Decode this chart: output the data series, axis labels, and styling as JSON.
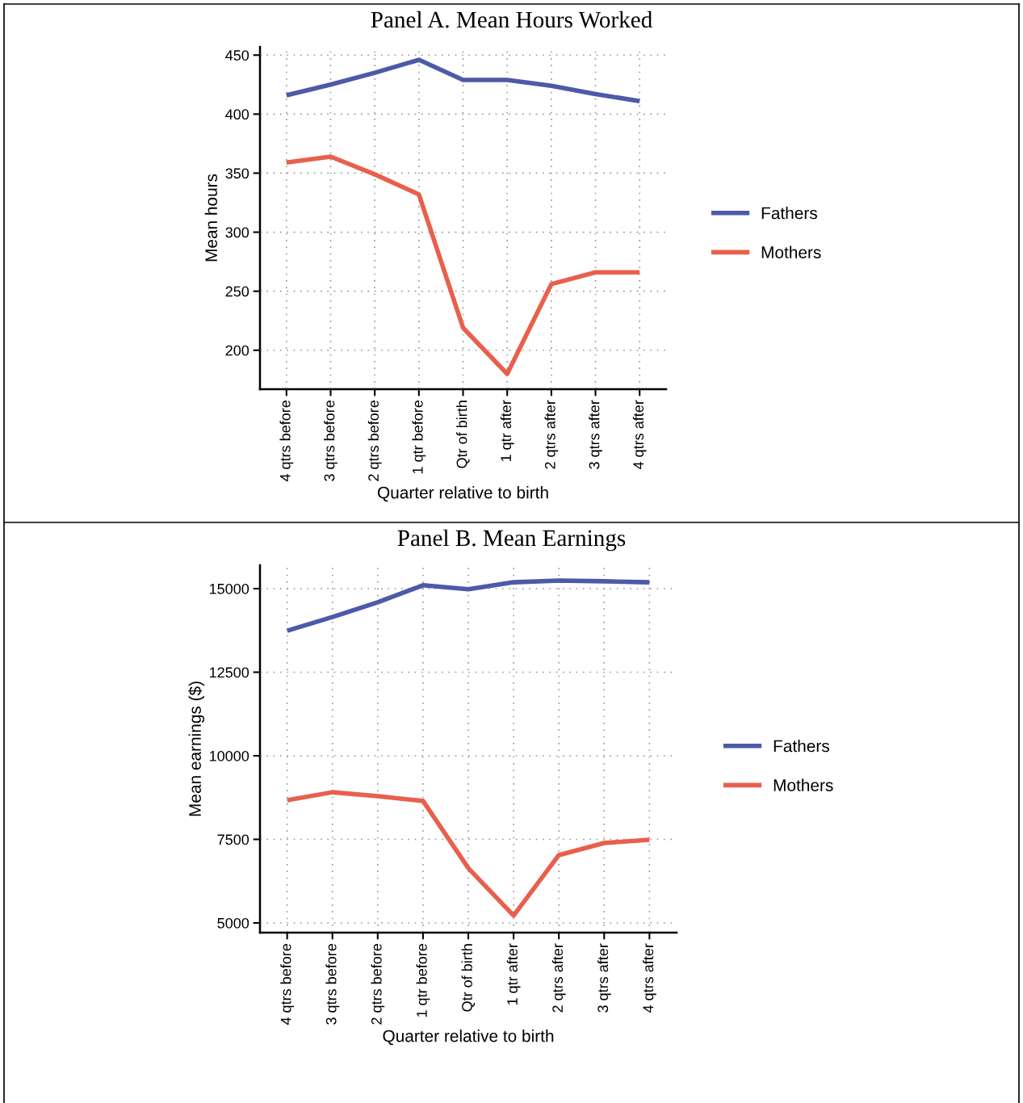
{
  "chart_data": [
    {
      "type": "line",
      "title": "Panel A. Mean Hours Worked",
      "xlabel": "Quarter relative to birth",
      "ylabel": "Mean hours",
      "categories": [
        "4 qtrs before",
        "3 qtrs before",
        "2 qtrs before",
        "1 qtr before",
        "Qtr of birth",
        "1 qtr after",
        "2 qtrs after",
        "3 qtrs after",
        "4 qtrs after"
      ],
      "series": [
        {
          "name": "Fathers",
          "color": "#4e5aa8",
          "values": [
            416,
            425,
            435,
            446,
            429,
            429,
            424,
            417,
            411
          ]
        },
        {
          "name": "Mothers",
          "color": "#e8604c",
          "values": [
            359,
            364,
            349,
            332,
            219,
            180,
            256,
            266,
            266
          ]
        }
      ],
      "ylim": [
        167,
        457
      ],
      "yticks": [
        200,
        250,
        300,
        350,
        400,
        450
      ],
      "grid": true,
      "legend": "right",
      "line_style": "solid",
      "marker": "none"
    },
    {
      "type": "line",
      "title": "Panel B. Mean Earnings",
      "xlabel": "Quarter relative to birth",
      "ylabel": "Mean earnings ($)",
      "categories": [
        "4 qtrs before",
        "3 qtrs before",
        "2 qtrs before",
        "1 qtr before",
        "Qtr of birth",
        "1 qtr after",
        "2 qtrs after",
        "3 qtrs after",
        "4 qtrs after"
      ],
      "series": [
        {
          "name": "Fathers",
          "color": "#4e5aa8",
          "values": [
            13740,
            14150,
            14590,
            15100,
            14980,
            15190,
            15240,
            15220,
            15190
          ]
        },
        {
          "name": "Mothers",
          "color": "#e8604c",
          "values": [
            8670,
            8910,
            8790,
            8650,
            6640,
            5220,
            7030,
            7390,
            7490
          ]
        }
      ],
      "ylim": [
        4710,
        15700
      ],
      "yticks": [
        5000,
        7500,
        10000,
        12500,
        15000
      ],
      "grid": true,
      "legend": "right",
      "line_style": "solid",
      "marker": "none"
    }
  ]
}
